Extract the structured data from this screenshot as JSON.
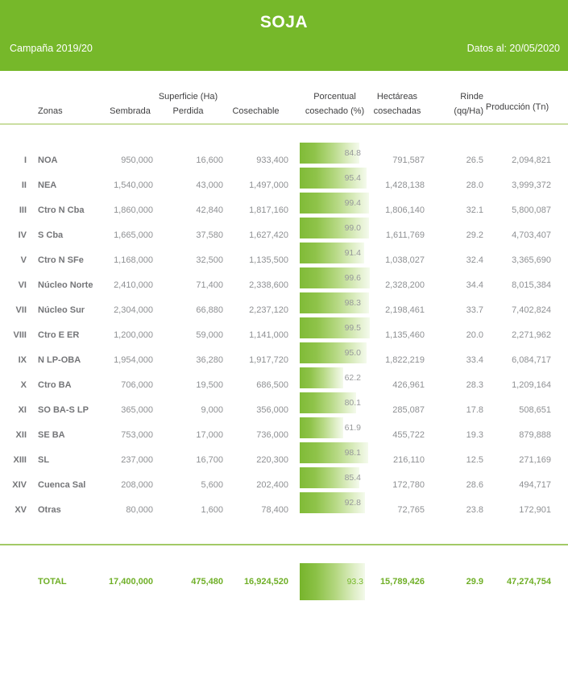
{
  "title_bar": {
    "title": "SOJA",
    "campaign": "Campaña 2019/20",
    "date": "Datos al: 20/05/2020"
  },
  "table_headers": {
    "zonas": "Zonas",
    "sembrada": "Sembrada",
    "superficie_group": "Superficie (Ha)",
    "perdida": "Perdida",
    "cosechable": "Cosechable",
    "porcentual_line1": "Porcentual",
    "porcentual_line2": "cosechado (%)",
    "hectareas_line1": "Hectáreas",
    "hectareas_line2": "cosechadas",
    "rinde_line1": "Rinde",
    "rinde_line2": "(qq/Ha)",
    "produccion": "Producción (Tn)"
  },
  "colors": {
    "banner_green": "#76B82A",
    "bar_gradient_start": "#80BB37",
    "bar_gradient_end": "#F4FAEC",
    "header_divider": "#CBDEA2",
    "total_divider": "#A2CA66",
    "total_text_green": "#6FAF27",
    "body_text_gray": "#8E9093"
  },
  "chart_data": {
    "type": "table",
    "title": "SOJA",
    "subtitle_left": "Campaña 2019/20",
    "subtitle_right": "Datos al: 20/05/2020",
    "embedded_bar_column": "Porcentual cosechado (%)",
    "bar_axis_range": [
      0,
      100
    ],
    "columns": [
      "Zonas",
      "Sembrada",
      "Perdida",
      "Cosechable",
      "Porcentual cosechado (%)",
      "Hectáreas cosechadas",
      "Rinde (qq/Ha)",
      "Producción (Tn)"
    ],
    "rows": [
      {
        "num": "I",
        "zona": "NOA",
        "sembrada": "950,000",
        "perdida": "16,600",
        "cosechable": "933,400",
        "pct": 84.8,
        "cosechadas": "791,587",
        "rinde": "26.5",
        "produccion": "2,094,821"
      },
      {
        "num": "II",
        "zona": "NEA",
        "sembrada": "1,540,000",
        "perdida": "43,000",
        "cosechable": "1,497,000",
        "pct": 95.4,
        "cosechadas": "1,428,138",
        "rinde": "28.0",
        "produccion": "3,999,372"
      },
      {
        "num": "III",
        "zona": "Ctro N Cba",
        "sembrada": "1,860,000",
        "perdida": "42,840",
        "cosechable": "1,817,160",
        "pct": 99.4,
        "cosechadas": "1,806,140",
        "rinde": "32.1",
        "produccion": "5,800,087"
      },
      {
        "num": "IV",
        "zona": "S Cba",
        "sembrada": "1,665,000",
        "perdida": "37,580",
        "cosechable": "1,627,420",
        "pct": 99.0,
        "cosechadas": "1,611,769",
        "rinde": "29.2",
        "produccion": "4,703,407"
      },
      {
        "num": "V",
        "zona": "Ctro N SFe",
        "sembrada": "1,168,000",
        "perdida": "32,500",
        "cosechable": "1,135,500",
        "pct": 91.4,
        "cosechadas": "1,038,027",
        "rinde": "32.4",
        "produccion": "3,365,690"
      },
      {
        "num": "VI",
        "zona": "Núcleo Norte",
        "sembrada": "2,410,000",
        "perdida": "71,400",
        "cosechable": "2,338,600",
        "pct": 99.6,
        "cosechadas": "2,328,200",
        "rinde": "34.4",
        "produccion": "8,015,384"
      },
      {
        "num": "VII",
        "zona": "Núcleo Sur",
        "sembrada": "2,304,000",
        "perdida": "66,880",
        "cosechable": "2,237,120",
        "pct": 98.3,
        "cosechadas": "2,198,461",
        "rinde": "33.7",
        "produccion": "7,402,824"
      },
      {
        "num": "VIII",
        "zona": "Ctro E ER",
        "sembrada": "1,200,000",
        "perdida": "59,000",
        "cosechable": "1,141,000",
        "pct": 99.5,
        "cosechadas": "1,135,460",
        "rinde": "20.0",
        "produccion": "2,271,962"
      },
      {
        "num": "IX",
        "zona": "N LP-OBA",
        "sembrada": "1,954,000",
        "perdida": "36,280",
        "cosechable": "1,917,720",
        "pct": 95.0,
        "cosechadas": "1,822,219",
        "rinde": "33.4",
        "produccion": "6,084,717"
      },
      {
        "num": "X",
        "zona": "Ctro BA",
        "sembrada": "706,000",
        "perdida": "19,500",
        "cosechable": "686,500",
        "pct": 62.2,
        "cosechadas": "426,961",
        "rinde": "28.3",
        "produccion": "1,209,164"
      },
      {
        "num": "XI",
        "zona": "SO BA-S LP",
        "sembrada": "365,000",
        "perdida": "9,000",
        "cosechable": "356,000",
        "pct": 80.1,
        "cosechadas": "285,087",
        "rinde": "17.8",
        "produccion": "508,651"
      },
      {
        "num": "XII",
        "zona": "SE BA",
        "sembrada": "753,000",
        "perdida": "17,000",
        "cosechable": "736,000",
        "pct": 61.9,
        "cosechadas": "455,722",
        "rinde": "19.3",
        "produccion": "879,888"
      },
      {
        "num": "XIII",
        "zona": "SL",
        "sembrada": "237,000",
        "perdida": "16,700",
        "cosechable": "220,300",
        "pct": 98.1,
        "cosechadas": "216,110",
        "rinde": "12.5",
        "produccion": "271,169"
      },
      {
        "num": "XIV",
        "zona": "Cuenca Sal",
        "sembrada": "208,000",
        "perdida": "5,600",
        "cosechable": "202,400",
        "pct": 85.4,
        "cosechadas": "172,780",
        "rinde": "28.6",
        "produccion": "494,717"
      },
      {
        "num": "XV",
        "zona": "Otras",
        "sembrada": "80,000",
        "perdida": "1,600",
        "cosechable": "78,400",
        "pct": 92.8,
        "cosechadas": "72,765",
        "rinde": "23.8",
        "produccion": "172,901"
      }
    ],
    "total": {
      "label": "TOTAL",
      "sembrada": "17,400,000",
      "perdida": "475,480",
      "cosechable": "16,924,520",
      "pct": 93.3,
      "cosechadas": "15,789,426",
      "rinde": "29.9",
      "produccion": "47,274,754"
    }
  }
}
